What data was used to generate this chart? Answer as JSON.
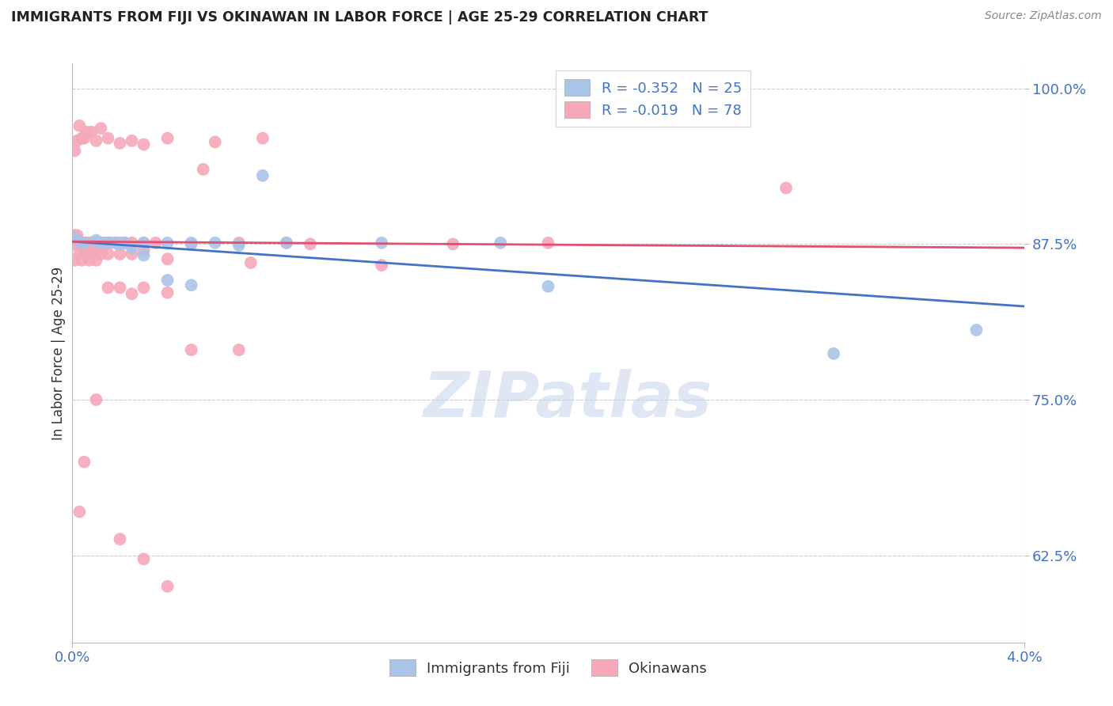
{
  "title": "IMMIGRANTS FROM FIJI VS OKINAWAN IN LABOR FORCE | AGE 25-29 CORRELATION CHART",
  "source": "Source: ZipAtlas.com",
  "ylabel": "In Labor Force | Age 25-29",
  "ytick_labels": [
    "100.0%",
    "87.5%",
    "75.0%",
    "62.5%"
  ],
  "ytick_values": [
    1.0,
    0.875,
    0.75,
    0.625
  ],
  "xlim": [
    0.0,
    0.04
  ],
  "ylim": [
    0.555,
    1.02
  ],
  "legend_fiji_R": "-0.352",
  "legend_fiji_N": "25",
  "legend_okinawan_R": "-0.019",
  "legend_okinawan_N": "78",
  "fiji_color": "#aac4e8",
  "okinawan_color": "#f5a8b8",
  "fiji_line_color": "#4472c4",
  "okinawan_line_color": "#e05070",
  "fiji_x": [
    5e-05,
    0.0003,
    0.0005,
    0.001,
    0.0012,
    0.0015,
    0.0018,
    0.002,
    0.0022,
    0.0025,
    0.003,
    0.003,
    0.004,
    0.004,
    0.005,
    0.006,
    0.007,
    0.009,
    0.013,
    0.018,
    0.02,
    0.032,
    0.038,
    0.005,
    0.008
  ],
  "fiji_y": [
    0.88,
    0.877,
    0.876,
    0.878,
    0.876,
    0.876,
    0.876,
    0.875,
    0.876,
    0.872,
    0.866,
    0.876,
    0.876,
    0.846,
    0.842,
    0.876,
    0.874,
    0.876,
    0.876,
    0.876,
    0.841,
    0.787,
    0.806,
    0.876,
    0.93
  ],
  "oki_x": [
    2e-05,
    5e-05,
    0.0001,
    0.0001,
    0.0001,
    0.0002,
    0.0002,
    0.0003,
    0.0003,
    0.0004,
    0.0004,
    0.0005,
    0.0005,
    0.0006,
    0.0006,
    0.0007,
    0.0007,
    0.0008,
    0.0009,
    0.001,
    0.001,
    0.001,
    0.0012,
    0.0012,
    0.0013,
    0.0014,
    0.0015,
    0.0015,
    0.0016,
    0.0018,
    0.002,
    0.002,
    0.0022,
    0.0025,
    0.0025,
    0.003,
    0.003,
    0.0035,
    0.004,
    0.005,
    0.0055,
    0.007,
    0.0075,
    0.009,
    0.01,
    0.013,
    0.016,
    0.02,
    0.03,
    0.0001,
    0.0002,
    0.0003,
    0.0004,
    0.0005,
    0.0006,
    0.0008,
    0.001,
    0.0012,
    0.0015,
    0.002,
    0.0025,
    0.003,
    0.004,
    0.006,
    0.008,
    0.0015,
    0.002,
    0.0025,
    0.003,
    0.004,
    0.005,
    0.007,
    0.001,
    0.0005,
    0.0003,
    0.002,
    0.003,
    0.004
  ],
  "oki_y": [
    0.881,
    0.876,
    0.882,
    0.875,
    0.862,
    0.882,
    0.875,
    0.875,
    0.868,
    0.876,
    0.862,
    0.876,
    0.868,
    0.876,
    0.868,
    0.876,
    0.862,
    0.876,
    0.869,
    0.876,
    0.87,
    0.862,
    0.876,
    0.867,
    0.876,
    0.875,
    0.876,
    0.867,
    0.876,
    0.876,
    0.876,
    0.867,
    0.876,
    0.876,
    0.867,
    0.876,
    0.87,
    0.876,
    0.863,
    0.875,
    0.935,
    0.876,
    0.86,
    0.876,
    0.875,
    0.858,
    0.875,
    0.876,
    0.92,
    0.95,
    0.958,
    0.97,
    0.96,
    0.96,
    0.965,
    0.965,
    0.958,
    0.968,
    0.96,
    0.956,
    0.958,
    0.955,
    0.96,
    0.957,
    0.96,
    0.84,
    0.84,
    0.835,
    0.84,
    0.836,
    0.79,
    0.79,
    0.75,
    0.7,
    0.66,
    0.638,
    0.622,
    0.6
  ],
  "fiji_line_x": [
    0.0,
    0.04
  ],
  "fiji_line_y": [
    0.877,
    0.825
  ],
  "oki_line_x": [
    0.0,
    0.04
  ],
  "oki_line_y": [
    0.877,
    0.872
  ],
  "watermark": "ZIPatlas",
  "background_color": "#ffffff",
  "grid_color": "#cccccc"
}
